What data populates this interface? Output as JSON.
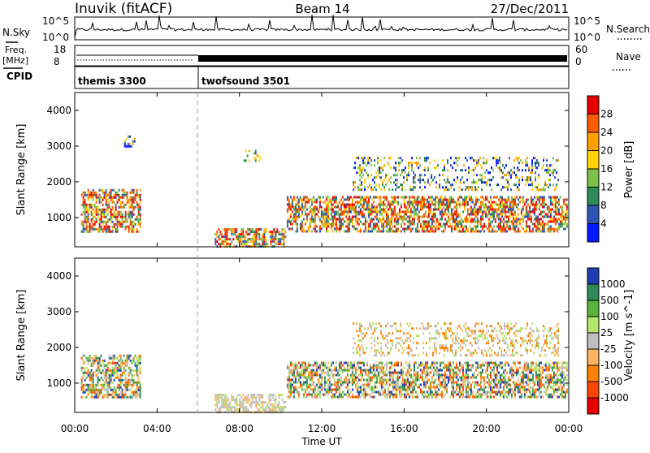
{
  "header": {
    "station": "Inuvik (fitACF)",
    "beam": "Beam 14",
    "date": "27/Dec/2011"
  },
  "strip_panels": {
    "nsky_label": "N.Sky",
    "nsky_ticks": [
      "10^5",
      "10^0"
    ],
    "nsearch_label": "N.Search",
    "nsearch_ticks": [
      "10^5",
      "10^0"
    ],
    "freq_label_1": "Freq.",
    "freq_label_2": "[MHz]",
    "freq_ticks": [
      "18",
      "8"
    ],
    "nave_label": "Nave",
    "nave_ticks": [
      "60",
      "0"
    ],
    "cpid_label": "CPID",
    "cpid_segments": [
      {
        "name": "themis 3300",
        "start_hour": 0,
        "end_hour": 6
      },
      {
        "name": "twofsound 3501",
        "start_hour": 6,
        "end_hour": 24
      }
    ]
  },
  "chart_data": [
    {
      "type": "heatmap",
      "panel": "power",
      "ylabel": "Slant Range [km]",
      "ylim": [
        180,
        4500
      ],
      "y_ticks": [
        "1000",
        "2000",
        "3000",
        "4000"
      ],
      "colorbar_label": "Power [dB]",
      "colorbar_ticks": [
        "4",
        "8",
        "12",
        "16",
        "20",
        "24",
        "28"
      ],
      "colorbar_colors": [
        "#0019ff",
        "#2f55b4",
        "#2e8b57",
        "#7fc04a",
        "#ffd20a",
        "#ffa000",
        "#ff5a00",
        "#e60000"
      ],
      "scatter_regions": [
        {
          "start_hour": 0.3,
          "end_hour": 3.2,
          "range_min_km": 600,
          "range_max_km": 1800,
          "level": "strong"
        },
        {
          "start_hour": 6.8,
          "end_hour": 10.2,
          "range_min_km": 200,
          "range_max_km": 700,
          "level": "strong"
        },
        {
          "start_hour": 10.3,
          "end_hour": 23.9,
          "range_min_km": 600,
          "range_max_km": 1600,
          "level": "strong"
        },
        {
          "start_hour": 13.5,
          "end_hour": 23.5,
          "range_min_km": 1800,
          "range_max_km": 2700,
          "level": "weak"
        },
        {
          "start_hour": 2.4,
          "end_hour": 2.9,
          "range_min_km": 3000,
          "range_max_km": 3300,
          "level": "weak"
        },
        {
          "start_hour": 8.2,
          "end_hour": 9.0,
          "range_min_km": 2600,
          "range_max_km": 2900,
          "level": "weak"
        }
      ]
    },
    {
      "type": "heatmap",
      "panel": "velocity",
      "ylabel": "Slant Range [km]",
      "ylim": [
        180,
        4500
      ],
      "y_ticks": [
        "1000",
        "2000",
        "3000",
        "4000"
      ],
      "colorbar_label": "Velocity [m s^-1]",
      "colorbar_ticks": [
        "1000",
        "500",
        "100",
        "25",
        "-25",
        "-100",
        "-500",
        "-1000"
      ],
      "colorbar_colors": [
        "#1e3cb4",
        "#2e8b57",
        "#5ab43c",
        "#b4e66e",
        "#bebebe",
        "#ffb464",
        "#ff8200",
        "#ff4600",
        "#e60000"
      ],
      "scatter_regions": [
        {
          "start_hour": 0.3,
          "end_hour": 3.2,
          "range_min_km": 600,
          "range_max_km": 1800,
          "level": "mixed"
        },
        {
          "start_hour": 6.8,
          "end_hour": 10.2,
          "range_min_km": 200,
          "range_max_km": 700,
          "level": "near-zero"
        },
        {
          "start_hour": 10.3,
          "end_hour": 23.9,
          "range_min_km": 600,
          "range_max_km": 1600,
          "level": "mixed"
        },
        {
          "start_hour": 13.5,
          "end_hour": 23.5,
          "range_min_km": 1800,
          "range_max_km": 2700,
          "level": "weak"
        }
      ]
    }
  ],
  "x_axis": {
    "label": "Time UT",
    "ticks": [
      "00:00",
      "04:00",
      "08:00",
      "12:00",
      "16:00",
      "20:00",
      "00:00"
    ]
  }
}
